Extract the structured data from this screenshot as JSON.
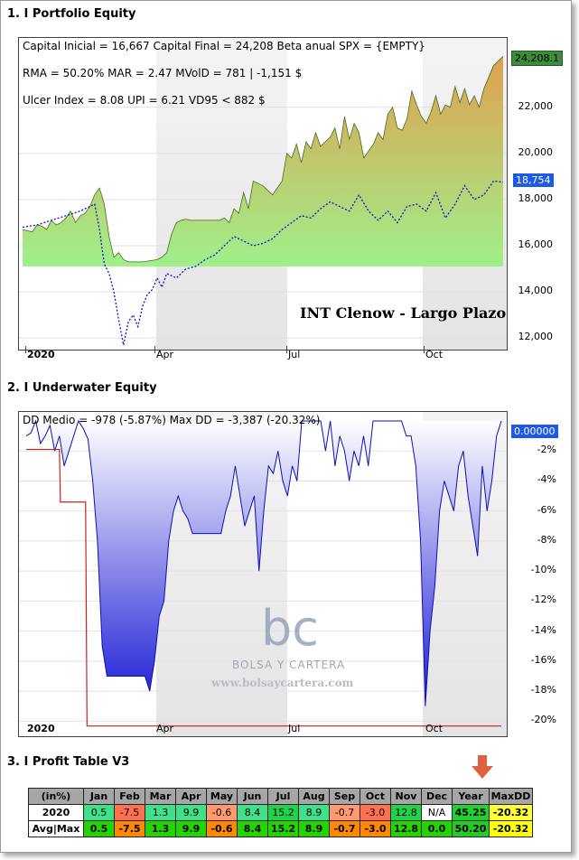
{
  "sections": {
    "equity_title": "1. I Portfolio Equity",
    "underwater_title": "2. I Underwater Equity",
    "profit_title": "3. I Profit Table V3"
  },
  "equity": {
    "annotations": [
      "Capital Inicial = 16,667  Capital Final = 24,208   Beta anual SPX = {EMPTY}",
      "RMA = 50.20%   MAR = 2.47   MVolD = 781 | -1,151 $",
      "Ulcer Index = 8.08   UPI = 6.21   VD95 < 882 $"
    ],
    "strategy_label": "INT Clenow - Largo Plazo",
    "last_value_label": "24,208.1",
    "benchmark_label": "18,754",
    "y_ticks": [
      "12,000",
      "14,000",
      "16,000",
      "18,000",
      "20,000",
      "22,000"
    ],
    "x_ticks": [
      "2020",
      "Apr",
      "Jul",
      "Oct"
    ],
    "colors": {
      "fill_top": "#e0a050",
      "fill_bottom": "#9ff08a",
      "line": "#4a6a20",
      "benchmark": "#1010cc",
      "badge_equity": "#3c8c3c",
      "badge_benchmark": "#1e5ae6"
    }
  },
  "underwater": {
    "annotation": "DD Medio = -978 (-5.87%)      Max DD = -3,387 (-20.32%)",
    "last_value_label": "0.00000",
    "y_ticks": [
      "-2%",
      "-4%",
      "-6%",
      "-8%",
      "-10%",
      "-12%",
      "-14%",
      "-16%",
      "-18%",
      "-20%"
    ],
    "x_ticks": [
      "2020",
      "Apr",
      "Jul",
      "Oct"
    ],
    "watermark_logo": "bc",
    "watermark_name": "BOLSA Y CARTERA",
    "watermark_url": "www.bolsaycartera.com",
    "colors": {
      "fill_top": "#ffffff",
      "fill_bottom": "#1a1ad6",
      "line": "#1010b0",
      "maxdd_line": "#cc2020"
    }
  },
  "profit_table": {
    "headers": [
      "(in%)",
      "Jan",
      "Feb",
      "Mar",
      "Apr",
      "May",
      "Jun",
      "Jul",
      "Aug",
      "Sep",
      "Oct",
      "Nov",
      "Dec",
      "Year",
      "MaxDD"
    ],
    "rows": [
      {
        "label": "2020",
        "cells": [
          "0.5",
          "-7.5",
          "1.3",
          "9.9",
          "-0.6",
          "8.4",
          "15.2",
          "8.9",
          "-0.7",
          "-3.0",
          "12.8",
          "N/A",
          "45.25",
          "-20.32"
        ]
      },
      {
        "label": "Avg|Max",
        "cells": [
          "0.5",
          "-7.5",
          "1.3",
          "9.9",
          "-0.6",
          "8.4",
          "15.2",
          "8.9",
          "-0.7",
          "-3.0",
          "12.8",
          "0.0",
          "50.20",
          "-20.32"
        ]
      }
    ]
  },
  "chart_data": [
    {
      "type": "area",
      "ylim": [
        11500,
        25000
      ],
      "x_range": [
        0,
        100
      ],
      "series": [
        {
          "x": [
            0,
            2,
            3,
            4,
            5,
            6,
            7,
            8,
            9,
            10,
            11,
            12,
            13,
            14,
            15,
            16,
            17,
            18,
            19,
            20,
            21,
            22,
            25,
            28,
            29,
            30,
            31,
            32,
            33,
            34,
            35,
            36,
            37,
            38,
            39,
            40,
            41,
            42,
            43,
            44,
            45,
            46,
            47,
            48,
            50,
            52,
            54,
            55,
            56,
            57,
            58,
            59,
            60,
            61,
            62,
            63,
            64,
            65,
            66,
            67,
            68,
            69,
            70,
            71,
            72,
            73,
            74,
            75,
            76,
            77,
            78,
            79,
            80,
            81,
            82,
            83,
            84,
            85,
            86,
            87,
            88,
            89,
            90,
            91,
            92,
            93,
            94,
            95,
            96,
            97,
            98,
            99,
            100
          ],
          "values": [
            16700,
            16600,
            16900,
            16850,
            16700,
            17100,
            16900,
            17000,
            17200,
            17500,
            17000,
            17300,
            17400,
            17700,
            18200,
            18500,
            17800,
            16400,
            15500,
            15700,
            15400,
            15300,
            15300,
            15400,
            15500,
            15700,
            16500,
            17000,
            17100,
            17150,
            17100,
            17100,
            17100,
            17100,
            17100,
            17100,
            17100,
            17200,
            17000,
            17600,
            17400,
            18300,
            17600,
            18800,
            18600,
            18200,
            18800,
            20000,
            19800,
            20400,
            19600,
            20500,
            20200,
            20900,
            20300,
            20500,
            20700,
            21100,
            20200,
            21600,
            20600,
            21300,
            20900,
            19800,
            20100,
            20400,
            20900,
            20600,
            21700,
            22000,
            21100,
            21000,
            21500,
            22700,
            22100,
            21600,
            21300,
            21800,
            22500,
            21700,
            22100,
            22000,
            22900,
            22200,
            22800,
            22100,
            22500,
            22000,
            22800,
            23300,
            23800,
            24000,
            24208
          ]
        },
        {
          "name": "",
          "x": [
            0,
            3,
            6,
            9,
            12,
            15,
            16,
            17,
            18,
            19,
            20,
            21,
            22,
            23,
            24,
            25,
            26,
            27,
            28,
            29,
            30,
            32,
            34,
            36,
            38,
            40,
            42,
            44,
            46,
            48,
            50,
            52,
            54,
            56,
            58,
            60,
            62,
            64,
            66,
            68,
            70,
            72,
            74,
            76,
            78,
            80,
            82,
            84,
            86,
            88,
            90,
            92,
            94,
            96,
            98,
            100
          ],
          "values": [
            16800,
            16900,
            17100,
            17300,
            17500,
            17800,
            16700,
            15200,
            14800,
            14000,
            12800,
            11700,
            12700,
            13000,
            12500,
            13400,
            13900,
            14100,
            14600,
            14200,
            14800,
            14600,
            15000,
            15100,
            15400,
            15600,
            16000,
            16400,
            16200,
            16000,
            16100,
            16300,
            16700,
            17000,
            17300,
            17200,
            17600,
            17900,
            17700,
            17500,
            18200,
            17500,
            17100,
            17500,
            17000,
            17700,
            17800,
            17500,
            18300,
            17200,
            17800,
            18600,
            18000,
            18200,
            18800,
            18754
          ]
        }
      ]
    },
    {
      "type": "area",
      "ylim": [
        -21,
        0.6
      ],
      "x_range": [
        0,
        100
      ],
      "series": [
        {
          "x": [
            0,
            1,
            2,
            3,
            4,
            5,
            6,
            7,
            8,
            9,
            10,
            11,
            12,
            13,
            14,
            15,
            16,
            17,
            18,
            19,
            20,
            21,
            22,
            23,
            24,
            25,
            26,
            27,
            28,
            29,
            30,
            31,
            32,
            33,
            34,
            35,
            36,
            37,
            38,
            39,
            40,
            41,
            42,
            43,
            44,
            45,
            46,
            47,
            48,
            49,
            50,
            51,
            52,
            53,
            54,
            55,
            56,
            57,
            58,
            59,
            60,
            61,
            62,
            63,
            64,
            65,
            66,
            67,
            68,
            69,
            70,
            71,
            72,
            73,
            74,
            75,
            76,
            77,
            78,
            79,
            80,
            81,
            82,
            83,
            84,
            85,
            86,
            87,
            88,
            89,
            90,
            91,
            92,
            93,
            94,
            95,
            96,
            97,
            98,
            99,
            100
          ],
          "values": [
            -1,
            -0.8,
            0,
            -1.5,
            -1,
            -0.3,
            -2,
            -1,
            -3,
            -2,
            -1,
            0,
            -0.5,
            -1.2,
            -4,
            -8,
            -15,
            -17,
            -17,
            -17,
            -17,
            -17,
            -17,
            -17,
            -17,
            -17,
            -18,
            -16,
            -13,
            -12,
            -8,
            -6,
            -5,
            -6,
            -6.5,
            -7.5,
            -7.5,
            -7.5,
            -7.5,
            -7.5,
            -7.5,
            -7.5,
            -6,
            -5,
            -3,
            -5,
            -7,
            -6,
            -5,
            -10,
            -6,
            -3,
            -3.5,
            -2,
            -4,
            -5,
            -3,
            -4,
            0,
            0,
            0,
            0,
            0,
            -2,
            0,
            -3,
            -1,
            -2,
            -4,
            -2,
            -3,
            -1,
            -3,
            0,
            0,
            0,
            0,
            0,
            0,
            0,
            -1,
            -1,
            -3,
            -8,
            -19,
            -14,
            -11,
            -6,
            -4,
            -5,
            -6,
            -3,
            -2,
            -5,
            -7,
            -9,
            -3,
            -6,
            -4,
            -1,
            0
          ]
        },
        {
          "name": "",
          "x": [
            0,
            2,
            2.1,
            7,
            7.2,
            10,
            10.2,
            12.5,
            12.8,
            100
          ],
          "values": [
            -1.9,
            -1.9,
            -1.9,
            -1.9,
            -5.4,
            -5.4,
            -5.4,
            -5.4,
            -20.32,
            -20.32
          ]
        }
      ]
    }
  ]
}
